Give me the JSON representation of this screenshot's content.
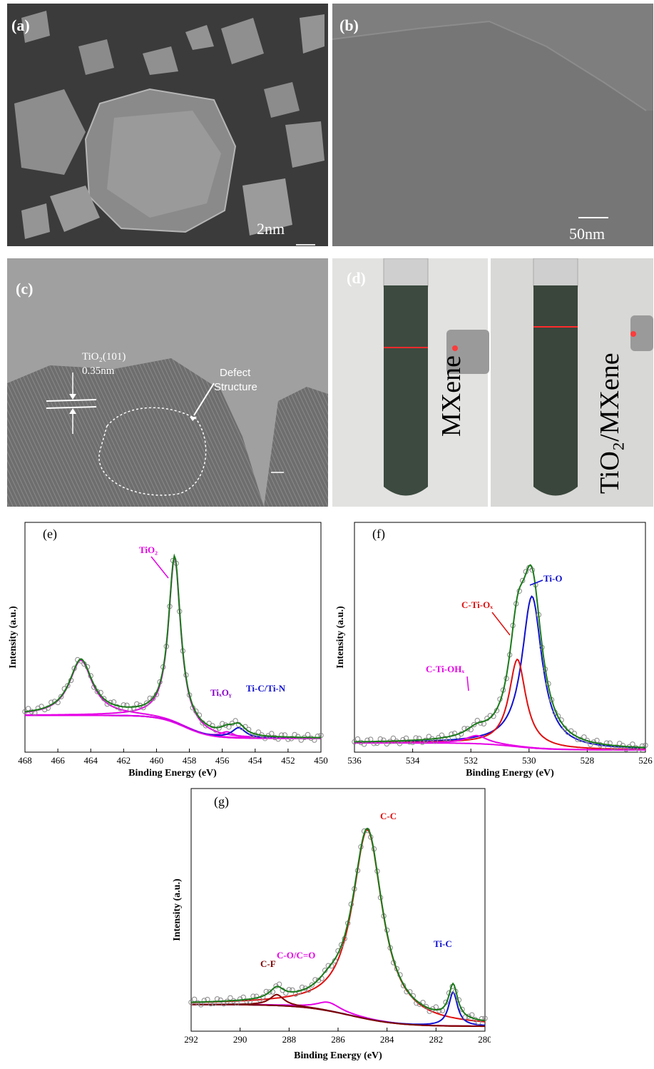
{
  "panel_a": {
    "label": "(a)",
    "scale_bar": "2nm"
  },
  "panel_b": {
    "label": "(b)",
    "scale_bar": "50nm"
  },
  "panel_c": {
    "label": "(c)",
    "lattice_label": "TiO₂(101)",
    "spacing": "0.35nm",
    "defect_line1": "Defect",
    "defect_line2": "Structure"
  },
  "panel_d": {
    "label": "(d)",
    "left_sample": "MXene",
    "right_sample": "TiO₂/MXene"
  },
  "colors": {
    "green": "#1a7a1a",
    "magenta": "#e600e6",
    "blue": "#1010d0",
    "red": "#e01010",
    "darkred": "#800000",
    "circle": "#888888"
  },
  "chart_data": [
    {
      "panel": "(e)",
      "type": "line",
      "xlabel": "Binding Energy (eV)",
      "ylabel": "Intensity (a.u.)",
      "xlim": [
        468,
        450
      ],
      "xticks": [
        468,
        466,
        464,
        462,
        460,
        458,
        456,
        454,
        452,
        450
      ],
      "annotations": [
        "TiO₂",
        "TiₓOᵧ",
        "Ti-C/Ti-N"
      ],
      "peaks": [
        {
          "name": "TiO₂",
          "center": 458.9,
          "color": "magenta"
        },
        {
          "name": "TiO₂",
          "center": 464.6,
          "color": "magenta"
        },
        {
          "name": "TiₓOᵧ",
          "center": 455.7,
          "color": "magenta"
        },
        {
          "name": "Ti-C/Ti-N",
          "center": 455.0,
          "color": "blue"
        }
      ]
    },
    {
      "panel": "(f)",
      "type": "line",
      "xlabel": "Binding Energy (eV)",
      "ylabel": "Intensity (a.u.)",
      "xlim": [
        536,
        526
      ],
      "xticks": [
        536,
        534,
        532,
        530,
        528,
        526
      ],
      "annotations": [
        "Ti-O",
        "C-Ti-Oₓ",
        "C-Ti-OHₓ"
      ],
      "peaks": [
        {
          "name": "Ti-O",
          "center": 529.9,
          "color": "blue"
        },
        {
          "name": "C-Ti-Oₓ",
          "center": 530.4,
          "color": "red"
        },
        {
          "name": "C-Ti-OHₓ",
          "center": 531.8,
          "color": "magenta"
        }
      ]
    },
    {
      "panel": "(g)",
      "type": "line",
      "xlabel": "Binding Energy (eV)",
      "ylabel": "Intensity (a.u.)",
      "xlim": [
        292,
        280
      ],
      "xticks": [
        292,
        290,
        288,
        286,
        284,
        282,
        280
      ],
      "annotations": [
        "C-C",
        "C-O/C=O",
        "C-F",
        "Ti-C"
      ],
      "peaks": [
        {
          "name": "C-C",
          "center": 284.8,
          "color": "red"
        },
        {
          "name": "C-O/C=O",
          "center": 286.4,
          "color": "magenta"
        },
        {
          "name": "C-F",
          "center": 288.5,
          "color": "darkred"
        },
        {
          "name": "Ti-C",
          "center": 281.3,
          "color": "blue"
        }
      ]
    }
  ]
}
